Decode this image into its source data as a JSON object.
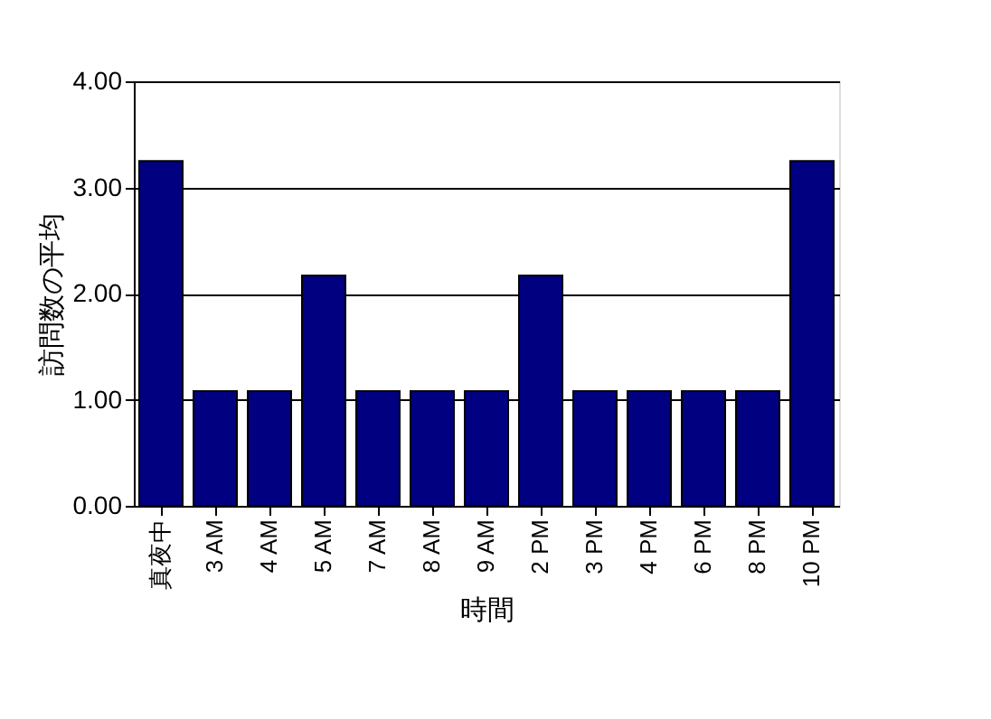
{
  "chart_data": {
    "type": "bar",
    "xlabel": "時間",
    "ylabel": "訪問数の平均",
    "categories": [
      "真夜中",
      "3 AM",
      "4 AM",
      "5 AM",
      "7 AM",
      "8 AM",
      "9 AM",
      "2 PM",
      "3 PM",
      "4 PM",
      "6 PM",
      "8 PM",
      "10 PM"
    ],
    "values": [
      3.25,
      1.08,
      1.08,
      2.17,
      1.08,
      1.08,
      1.08,
      2.17,
      1.08,
      1.08,
      1.08,
      1.08,
      3.25
    ],
    "color": "#000080",
    "ylim": [
      0,
      4
    ],
    "yticks": [
      {
        "value": 0,
        "label": "0.00"
      },
      {
        "value": 1,
        "label": "1.00"
      },
      {
        "value": 2,
        "label": "2.00"
      },
      {
        "value": 3,
        "label": "3.00"
      },
      {
        "value": 4,
        "label": "4.00"
      }
    ],
    "grid": "y"
  }
}
